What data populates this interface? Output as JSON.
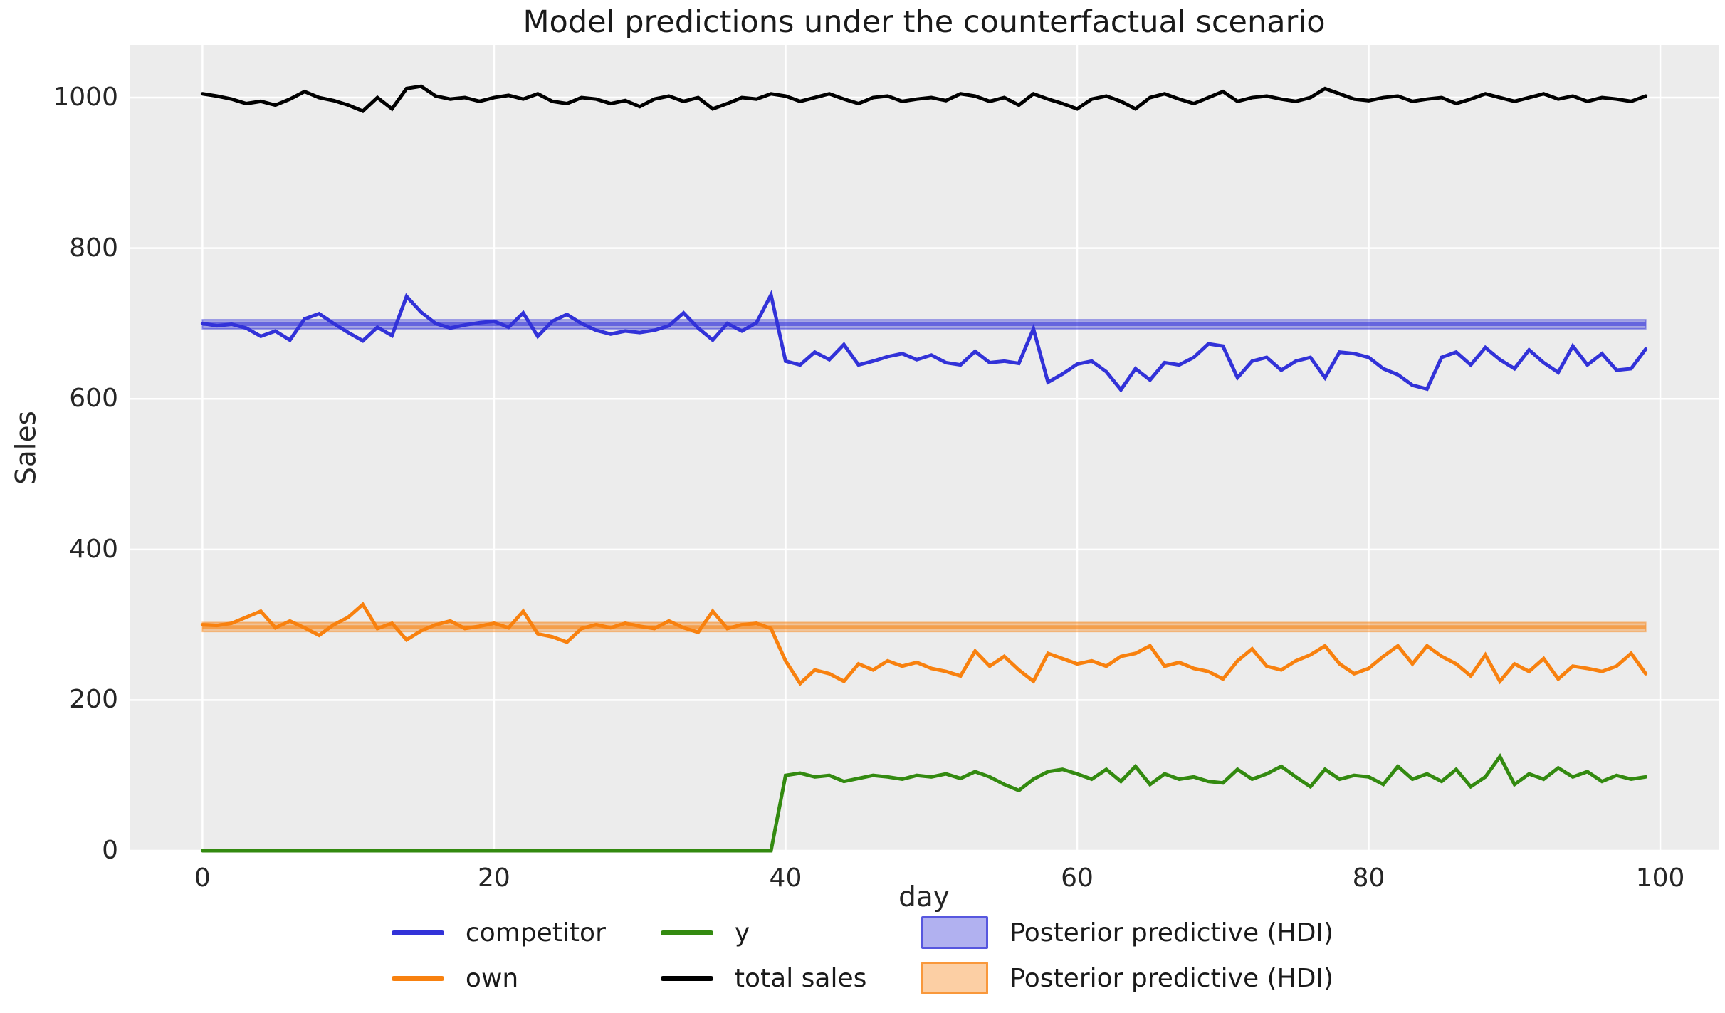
{
  "title": "Model predictions under the counterfactual scenario",
  "plot_bg_color": "#ececec",
  "grid_color": "#ffffff",
  "chart_data": {
    "type": "line",
    "title": "Model predictions under the counterfactual scenario",
    "xlabel": "day",
    "ylabel": "Sales",
    "xlim": [
      -5,
      104
    ],
    "ylim": [
      0,
      1070
    ],
    "x_ticks": [
      0,
      20,
      40,
      60,
      80,
      100
    ],
    "y_ticks": [
      0,
      200,
      400,
      600,
      800,
      1000
    ],
    "grid": true,
    "legend_position": "below",
    "x_start": 0,
    "x_step": 1,
    "series": [
      {
        "name": "competitor",
        "color": "#3232d8",
        "values": [
          700,
          697,
          699,
          694,
          683,
          690,
          678,
          706,
          713,
          700,
          688,
          677,
          695,
          684,
          736,
          715,
          700,
          694,
          698,
          701,
          703,
          695,
          714,
          683,
          703,
          712,
          700,
          691,
          686,
          690,
          688,
          691,
          697,
          714,
          694,
          678,
          700,
          690,
          701,
          738,
          650,
          645,
          662,
          652,
          672,
          645,
          650,
          656,
          660,
          652,
          658,
          648,
          645,
          663,
          648,
          650,
          647,
          693,
          622,
          633,
          646,
          650,
          636,
          612,
          640,
          625,
          648,
          645,
          655,
          673,
          670,
          628,
          650,
          655,
          638,
          650,
          655,
          628,
          662,
          660,
          655,
          640,
          632,
          618,
          613,
          655,
          662,
          645,
          668,
          652,
          640,
          665,
          648,
          635,
          670,
          645,
          660,
          638,
          640,
          666
        ]
      },
      {
        "name": "own",
        "color": "#f8810f",
        "values": [
          300,
          299,
          302,
          310,
          318,
          296,
          305,
          296,
          286,
          300,
          310,
          327,
          295,
          302,
          280,
          292,
          300,
          305,
          295,
          298,
          302,
          296,
          318,
          288,
          284,
          277,
          295,
          300,
          296,
          302,
          298,
          295,
          305,
          296,
          290,
          318,
          295,
          300,
          302,
          295,
          252,
          222,
          240,
          235,
          225,
          248,
          240,
          252,
          245,
          250,
          242,
          238,
          232,
          265,
          245,
          258,
          240,
          225,
          262,
          255,
          248,
          252,
          245,
          258,
          262,
          272,
          245,
          250,
          242,
          238,
          228,
          252,
          268,
          245,
          240,
          252,
          260,
          272,
          248,
          235,
          242,
          258,
          272,
          248,
          272,
          258,
          248,
          232,
          260,
          225,
          248,
          238,
          255,
          228,
          245,
          242,
          238,
          245,
          262,
          235
        ]
      },
      {
        "name": "y",
        "color": "#338a10",
        "values": [
          0,
          0,
          0,
          0,
          0,
          0,
          0,
          0,
          0,
          0,
          0,
          0,
          0,
          0,
          0,
          0,
          0,
          0,
          0,
          0,
          0,
          0,
          0,
          0,
          0,
          0,
          0,
          0,
          0,
          0,
          0,
          0,
          0,
          0,
          0,
          0,
          0,
          0,
          0,
          0,
          100,
          103,
          98,
          100,
          92,
          96,
          100,
          98,
          95,
          100,
          98,
          102,
          96,
          105,
          98,
          88,
          80,
          95,
          105,
          108,
          102,
          95,
          108,
          92,
          112,
          88,
          102,
          95,
          98,
          92,
          90,
          108,
          95,
          102,
          112,
          98,
          85,
          108,
          95,
          100,
          98,
          88,
          112,
          95,
          102,
          92,
          108,
          85,
          98,
          125,
          88,
          102,
          95,
          110,
          98,
          105,
          92,
          100,
          95,
          98
        ]
      },
      {
        "name": "total sales",
        "color": "#000000",
        "values": [
          1005,
          1002,
          998,
          992,
          995,
          990,
          998,
          1008,
          1000,
          996,
          990,
          982,
          1000,
          985,
          1012,
          1015,
          1002,
          998,
          1000,
          995,
          1000,
          1003,
          998,
          1005,
          995,
          992,
          1000,
          998,
          992,
          996,
          988,
          998,
          1002,
          995,
          1000,
          985,
          992,
          1000,
          998,
          1005,
          1002,
          995,
          1000,
          1005,
          998,
          992,
          1000,
          1002,
          995,
          998,
          1000,
          996,
          1005,
          1002,
          995,
          1000,
          990,
          1005,
          998,
          992,
          985,
          998,
          1002,
          995,
          985,
          1000,
          1005,
          998,
          992,
          1000,
          1008,
          995,
          1000,
          1002,
          998,
          995,
          1000,
          1012,
          1005,
          998,
          996,
          1000,
          1002,
          995,
          998,
          1000,
          992,
          998,
          1005,
          1000,
          995,
          1000,
          1005,
          998,
          1002,
          995,
          1000,
          998,
          995,
          1002
        ]
      }
    ],
    "bands": [
      {
        "name": "Posterior predictive (HDI)",
        "color": "#3232d8",
        "x0": 0,
        "x1": 99,
        "lo": 693,
        "hi": 705,
        "center": 699
      },
      {
        "name": "Posterior predictive (HDI)",
        "color": "#f8810f",
        "x0": 0,
        "x1": 99,
        "lo": 291,
        "hi": 303,
        "center": 297
      }
    ]
  },
  "legend": {
    "items": [
      {
        "label": "competitor",
        "swatch": "line",
        "color": "#3232d8"
      },
      {
        "label": "own",
        "swatch": "line",
        "color": "#f8810f"
      },
      {
        "label": "y",
        "swatch": "line",
        "color": "#338a10"
      },
      {
        "label": "total sales",
        "swatch": "line",
        "color": "#000000"
      },
      {
        "label": "Posterior predictive (HDI)",
        "swatch": "patch",
        "color": "#3232d8"
      },
      {
        "label": "Posterior predictive (HDI)",
        "swatch": "patch",
        "color": "#f8810f"
      }
    ]
  }
}
